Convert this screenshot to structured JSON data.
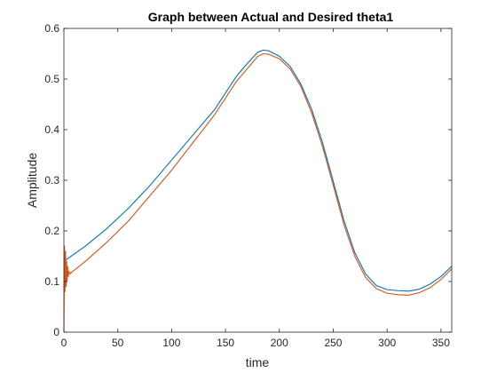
{
  "chart_data": {
    "type": "line",
    "title": "Graph between Actual and Desired theta1",
    "xlabel": "time",
    "ylabel": "Amplitude",
    "xlim": [
      0,
      360
    ],
    "ylim": [
      0,
      0.6
    ],
    "xticks": [
      0,
      50,
      100,
      150,
      200,
      250,
      300,
      350
    ],
    "yticks": [
      0,
      0.1,
      0.2,
      0.3,
      0.4,
      0.5,
      0.6
    ],
    "xtick_labels": [
      "0",
      "50",
      "100",
      "150",
      "200",
      "250",
      "300",
      "350"
    ],
    "ytick_labels": [
      "0",
      "0.1",
      "0.2",
      "0.3",
      "0.4",
      "0.5",
      "0.6"
    ],
    "grid": false,
    "box": true,
    "series": [
      {
        "color": "#0072BD",
        "x": [
          0,
          10,
          20,
          40,
          60,
          80,
          100,
          120,
          140,
          160,
          170,
          180,
          185,
          190,
          200,
          210,
          220,
          230,
          240,
          250,
          260,
          270,
          280,
          290,
          300,
          310,
          320,
          330,
          340,
          350,
          360
        ],
        "y": [
          0.14,
          0.155,
          0.17,
          0.205,
          0.245,
          0.29,
          0.34,
          0.39,
          0.44,
          0.505,
          0.53,
          0.553,
          0.557,
          0.556,
          0.545,
          0.525,
          0.49,
          0.44,
          0.375,
          0.298,
          0.22,
          0.157,
          0.115,
          0.092,
          0.084,
          0.082,
          0.081,
          0.085,
          0.095,
          0.11,
          0.13
        ]
      },
      {
        "color": "#D95319",
        "x": [
          0,
          0.5,
          1,
          1.5,
          2,
          2.5,
          3,
          3.5,
          4,
          5,
          6,
          8,
          10,
          20,
          40,
          60,
          80,
          100,
          120,
          140,
          160,
          170,
          180,
          185,
          190,
          200,
          210,
          220,
          230,
          240,
          250,
          260,
          270,
          280,
          290,
          300,
          310,
          320,
          330,
          340,
          350,
          360
        ],
        "y": [
          0.0,
          0.17,
          0.08,
          0.16,
          0.09,
          0.14,
          0.1,
          0.13,
          0.11,
          0.12,
          0.115,
          0.12,
          0.123,
          0.14,
          0.178,
          0.22,
          0.27,
          0.32,
          0.375,
          0.43,
          0.495,
          0.52,
          0.545,
          0.55,
          0.549,
          0.54,
          0.52,
          0.485,
          0.433,
          0.367,
          0.29,
          0.212,
          0.15,
          0.108,
          0.086,
          0.077,
          0.074,
          0.073,
          0.078,
          0.088,
          0.104,
          0.125
        ]
      }
    ]
  }
}
